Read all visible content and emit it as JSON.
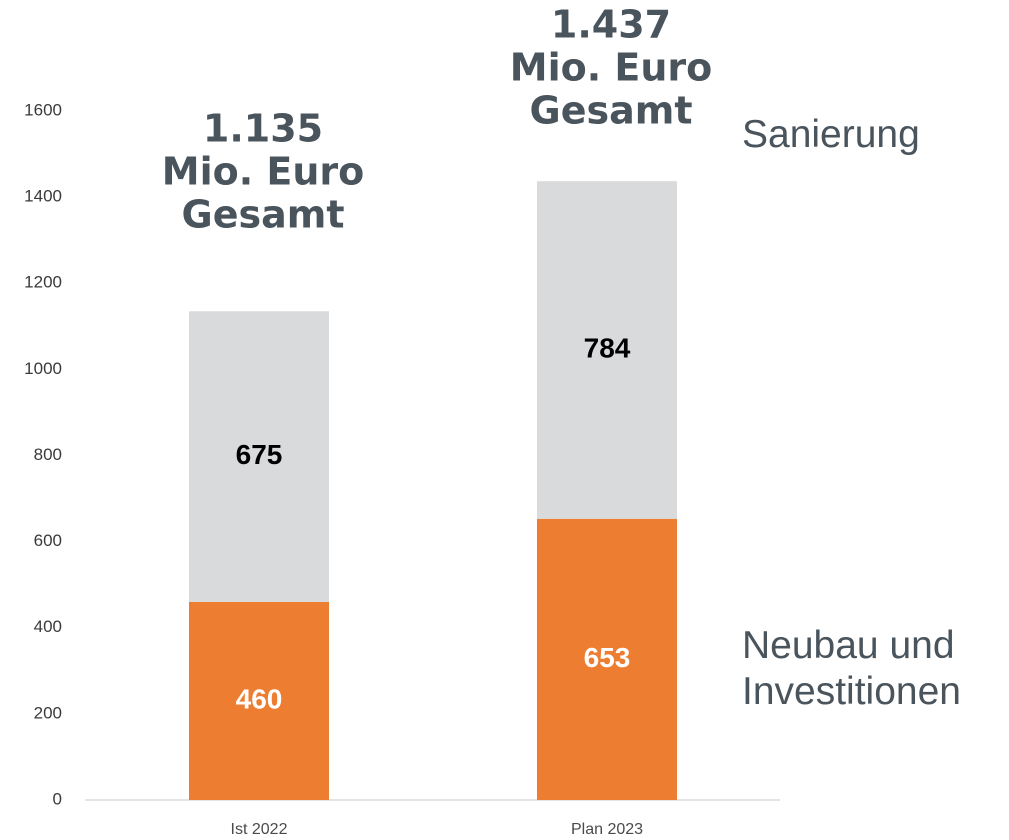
{
  "chart_data": {
    "type": "bar",
    "stacked": true,
    "categories": [
      "Ist 2022",
      "Plan 2023"
    ],
    "series": [
      {
        "name": "Neubau und Investitionen",
        "color": "#ed7d31",
        "label_color": "#ffffff",
        "values": [
          460,
          653
        ]
      },
      {
        "name": "Sanierung",
        "color": "#d9dadc",
        "label_color": "#000000",
        "values": [
          675,
          784
        ]
      }
    ],
    "total_labels": [
      [
        "1.135",
        "Mio. Euro",
        "Gesamt"
      ],
      [
        "1.437",
        "Mio. Euro",
        "Gesamt"
      ]
    ],
    "ylim": [
      0,
      1600
    ],
    "yticks": [
      0,
      200,
      400,
      600,
      800,
      1000,
      1200,
      1400,
      1600
    ],
    "grid": false
  }
}
